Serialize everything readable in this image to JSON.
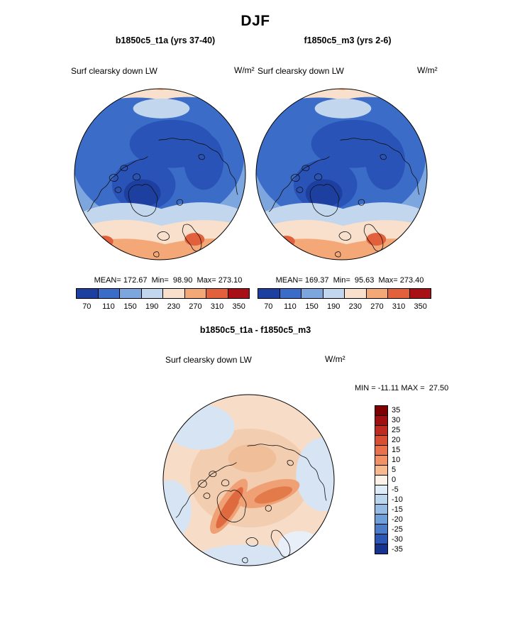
{
  "page": {
    "title": "DJF"
  },
  "panels": {
    "left": {
      "title": "b1850c5_t1a (yrs 37-40)",
      "field_label": "Surf clearsky down LW",
      "units": "W/m²",
      "stats": "MEAN= 172.67  Min=  98.90  Max= 273.10"
    },
    "right": {
      "title": "f1850c5_m3 (yrs 2-6)",
      "field_label": "Surf clearsky down LW",
      "units": "W/m²",
      "stats": "MEAN= 169.37  Min=  95.63  Max= 273.40"
    },
    "diff": {
      "title": "b1850c5_t1a - f1850c5_m3",
      "field_label": "Surf clearsky down LW",
      "units": "W/m²",
      "stats": "MIN = -11.11 MAX =  27.50"
    }
  },
  "colorbar_top": {
    "ticks": [
      "70",
      "110",
      "150",
      "190",
      "230",
      "270",
      "310",
      "350"
    ],
    "colors": [
      "#1c3fa0",
      "#3a6cc8",
      "#7da6de",
      "#c2d6ee",
      "#f9e0cc",
      "#f4a878",
      "#e2603c",
      "#a81016"
    ]
  },
  "colorbar_diff": {
    "ticks": [
      "35",
      "30",
      "25",
      "20",
      "15",
      "10",
      "5",
      "0",
      "-5",
      "-10",
      "-15",
      "-20",
      "-25",
      "-30",
      "-35"
    ],
    "colors": [
      "#7f0000",
      "#a01010",
      "#bf2b20",
      "#d94f33",
      "#e9714b",
      "#f29066",
      "#f8b98f",
      "#fdf2e8",
      "#dfebf7",
      "#bcd6ee",
      "#96bce4",
      "#6f9fd8",
      "#4a7cc8",
      "#2b57b4",
      "#15338f"
    ]
  },
  "chart_data": [
    {
      "type": "heatmap",
      "subtype": "polar-stereographic contour map",
      "season": "DJF",
      "title": "b1850c5_t1a (yrs 37-40)",
      "variable": "Surf clearsky down LW",
      "units": "W/m²",
      "stats": {
        "mean": 172.67,
        "min": 98.9,
        "max": 273.1
      },
      "colorbar_levels": [
        70,
        110,
        150,
        190,
        230,
        270,
        310,
        350
      ],
      "legend_position": "bottom",
      "notes": "Arctic mostly deep blue (low values ~100-190); warm orange band over North Atlantic / Scandinavia rim (~230-310)"
    },
    {
      "type": "heatmap",
      "subtype": "polar-stereographic contour map",
      "season": "DJF",
      "title": "f1850c5_m3 (yrs 2-6)",
      "variable": "Surf clearsky down LW",
      "units": "W/m²",
      "stats": {
        "mean": 169.37,
        "min": 95.63,
        "max": 273.4
      },
      "colorbar_levels": [
        70,
        110,
        150,
        190,
        230,
        270,
        310,
        350
      ],
      "legend_position": "bottom",
      "notes": "Pattern nearly identical to left panel"
    },
    {
      "type": "heatmap",
      "subtype": "polar-stereographic difference map",
      "season": "DJF",
      "title": "b1850c5_t1a - f1850c5_m3",
      "variable": "Surf clearsky down LW",
      "units": "W/m²",
      "stats": {
        "min": -11.11,
        "max": 27.5
      },
      "colorbar_levels": [
        -35,
        -30,
        -25,
        -20,
        -15,
        -10,
        -5,
        0,
        5,
        10,
        15,
        20,
        25,
        30,
        35
      ],
      "legend_position": "right",
      "notes": "Mostly pale orange (+0 to +10) with stronger orange streaks near Greenland/central Arctic; pale blue patches near edges"
    }
  ]
}
